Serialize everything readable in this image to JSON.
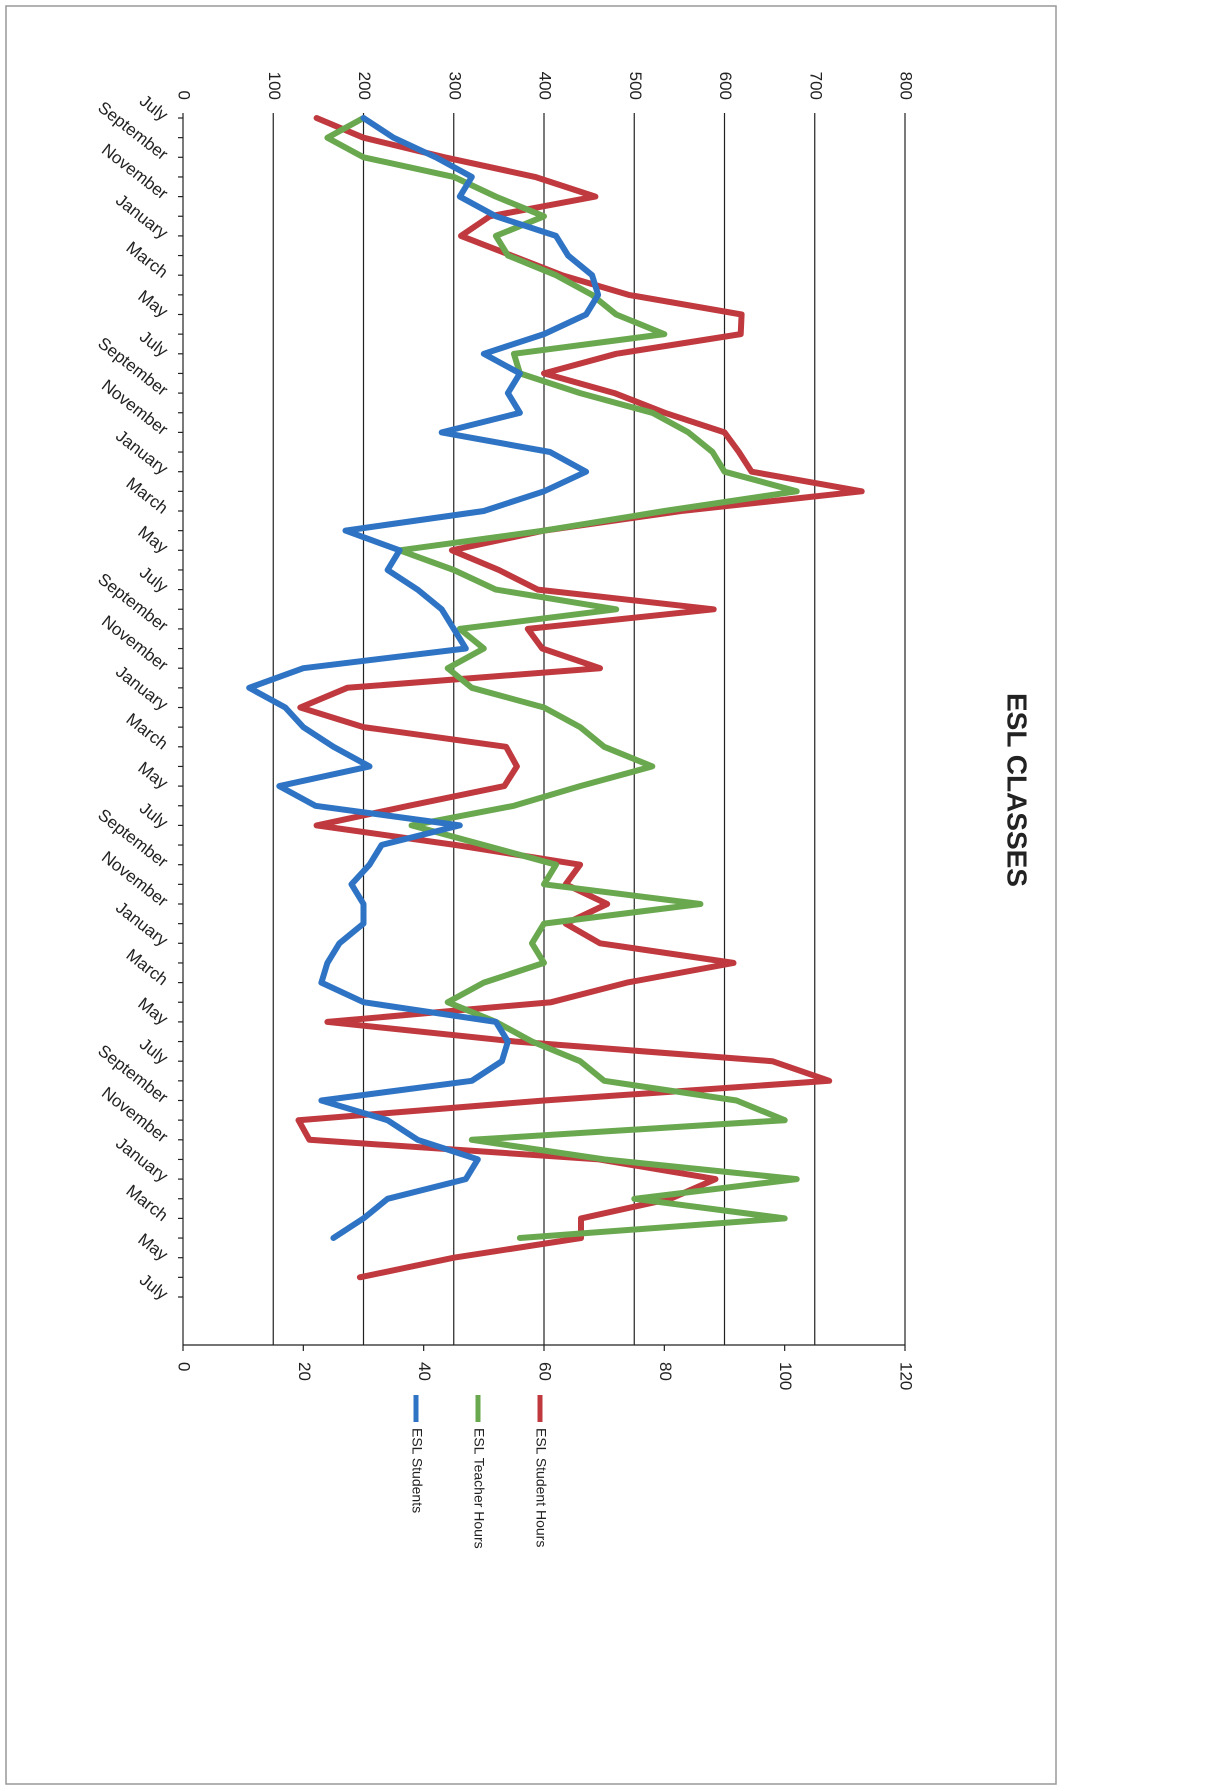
{
  "chart_data": {
    "type": "line",
    "title": "ESL CLASSES",
    "categories": [
      "July",
      null,
      "September",
      null,
      "November",
      null,
      "January",
      null,
      "March",
      null,
      "May",
      null,
      "July",
      null,
      "September",
      null,
      "November",
      null,
      "January",
      null,
      "March",
      null,
      "May",
      null,
      "July",
      null,
      "September",
      null,
      "November",
      null,
      "January",
      null,
      "March",
      null,
      "May",
      null,
      "July",
      null,
      "September",
      null,
      "November",
      null,
      "January",
      null,
      "March",
      null,
      "May",
      null,
      "July",
      null,
      "September",
      null,
      "November",
      null,
      "January",
      null,
      "March",
      null,
      "May",
      null,
      "July"
    ],
    "ylim": [
      0,
      800
    ],
    "yticks": [
      0,
      100,
      200,
      300,
      400,
      500,
      600,
      700,
      800
    ],
    "y2lim": [
      0,
      120
    ],
    "y2ticks": [
      0,
      20,
      40,
      60,
      80,
      100,
      120
    ],
    "grid": true,
    "legend": "bottom",
    "orientation": "rotated",
    "series": [
      {
        "name": "ESL Student Hours",
        "color": "#c0393f",
        "axis": "y",
        "values": [
          148,
          200,
          290,
          390,
          457,
          340,
          308,
          364,
          420,
          494,
          619,
          618,
          480,
          400,
          478,
          534,
          600,
          616,
          630,
          752,
          552,
          400,
          298,
          350,
          393,
          588,
          382,
          398,
          462,
          182,
          130,
          200,
          358,
          370,
          356,
          250,
          148,
          302,
          440,
          424,
          470,
          424,
          462,
          610,
          492,
          408,
          160,
          368,
          653,
          716,
          400,
          128,
          140,
          461,
          590,
          540,
          441,
          441,
          300,
          196,
          null
        ]
      },
      {
        "name": "ESL Teacher Hours",
        "color": "#6aa84f",
        "axis": "y2",
        "values": [
          30,
          24,
          30,
          45,
          52,
          60,
          52,
          54,
          62,
          68,
          72,
          80,
          55,
          56,
          66,
          78,
          84,
          88,
          90,
          102,
          80,
          60,
          36,
          45,
          52,
          72,
          46,
          50,
          44,
          48,
          60,
          66,
          70,
          78,
          66,
          55,
          38,
          50,
          62,
          60,
          86,
          60,
          58,
          60,
          50,
          44,
          52,
          58,
          66,
          70,
          92,
          100,
          48,
          70,
          102,
          75,
          100,
          56,
          null,
          null,
          null
        ]
      },
      {
        "name": "ESL Students",
        "color": "#2f74c4",
        "axis": "y2",
        "values": [
          30,
          35,
          42,
          48,
          46,
          52,
          62,
          64,
          68,
          69,
          67,
          60,
          50,
          56,
          54,
          56,
          43,
          61,
          67,
          60,
          50,
          27,
          36,
          34,
          39,
          43,
          45,
          47,
          20,
          11,
          17,
          20,
          25,
          31,
          16,
          22,
          46,
          33,
          31,
          28,
          30,
          30,
          26,
          24,
          23,
          30,
          52,
          54,
          53,
          48,
          23,
          34,
          39,
          49,
          47,
          34,
          30,
          25,
          null,
          null,
          null
        ]
      }
    ]
  }
}
